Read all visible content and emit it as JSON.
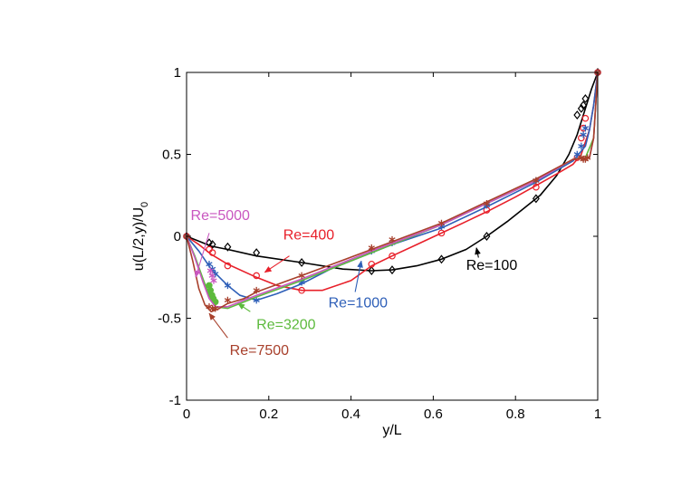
{
  "chart_data": {
    "type": "line",
    "title": "",
    "xlabel": "y/L",
    "ylabel_main": "u(L/2,y)/U",
    "ylabel_sub": "0",
    "xlim": [
      0,
      1
    ],
    "ylim": [
      -1,
      1
    ],
    "xticks": [
      0,
      0.2,
      0.4,
      0.6,
      0.8,
      1
    ],
    "xtick_labels": [
      "0",
      "0.2",
      "0.4",
      "0.6",
      "0.8",
      "1"
    ],
    "yticks": [
      -1,
      -0.5,
      0,
      0.5,
      1
    ],
    "ytick_labels": [
      "-1",
      "-0.5",
      "0",
      "0.5",
      "1"
    ],
    "grid": false,
    "series": [
      {
        "name": "Re=100",
        "color": "#000000",
        "marker": "diamond",
        "curve": [
          [
            0,
            0
          ],
          [
            0.03,
            -0.03
          ],
          [
            0.06,
            -0.06
          ],
          [
            0.1,
            -0.08
          ],
          [
            0.17,
            -0.12
          ],
          [
            0.28,
            -0.16
          ],
          [
            0.38,
            -0.2
          ],
          [
            0.45,
            -0.21
          ],
          [
            0.5,
            -0.205
          ],
          [
            0.56,
            -0.18
          ],
          [
            0.62,
            -0.14
          ],
          [
            0.68,
            -0.08
          ],
          [
            0.73,
            0.0
          ],
          [
            0.78,
            0.09
          ],
          [
            0.82,
            0.17
          ],
          [
            0.86,
            0.25
          ],
          [
            0.9,
            0.37
          ],
          [
            0.93,
            0.5
          ],
          [
            0.95,
            0.62
          ],
          [
            0.97,
            0.78
          ],
          [
            0.985,
            0.9
          ],
          [
            1,
            1
          ]
        ],
        "points": [
          [
            0,
            0
          ],
          [
            0.055,
            -0.04
          ],
          [
            0.063,
            -0.05
          ],
          [
            0.1,
            -0.065
          ],
          [
            0.17,
            -0.1
          ],
          [
            0.28,
            -0.16
          ],
          [
            0.45,
            -0.21
          ],
          [
            0.5,
            -0.205
          ],
          [
            0.62,
            -0.14
          ],
          [
            0.73,
            0.0
          ],
          [
            0.85,
            0.23
          ],
          [
            0.95,
            0.74
          ],
          [
            0.96,
            0.78
          ],
          [
            0.965,
            0.8
          ],
          [
            0.97,
            0.84
          ],
          [
            1,
            1
          ]
        ]
      },
      {
        "name": "Re=400",
        "color": "#e8202a",
        "marker": "circle",
        "curve": [
          [
            0,
            0
          ],
          [
            0.03,
            -0.05
          ],
          [
            0.06,
            -0.11
          ],
          [
            0.1,
            -0.17
          ],
          [
            0.17,
            -0.25
          ],
          [
            0.22,
            -0.3
          ],
          [
            0.28,
            -0.33
          ],
          [
            0.33,
            -0.33
          ],
          [
            0.4,
            -0.27
          ],
          [
            0.45,
            -0.18
          ],
          [
            0.5,
            -0.12
          ],
          [
            0.56,
            -0.05
          ],
          [
            0.62,
            0.02
          ],
          [
            0.68,
            0.09
          ],
          [
            0.73,
            0.15
          ],
          [
            0.8,
            0.24
          ],
          [
            0.85,
            0.31
          ],
          [
            0.9,
            0.38
          ],
          [
            0.94,
            0.44
          ],
          [
            0.96,
            0.5
          ],
          [
            0.98,
            0.65
          ],
          [
            0.99,
            0.8
          ],
          [
            1,
            1
          ]
        ],
        "points": [
          [
            0,
            0
          ],
          [
            0.055,
            -0.08
          ],
          [
            0.063,
            -0.1
          ],
          [
            0.1,
            -0.18
          ],
          [
            0.17,
            -0.24
          ],
          [
            0.28,
            -0.33
          ],
          [
            0.45,
            -0.17
          ],
          [
            0.5,
            -0.12
          ],
          [
            0.62,
            0.02
          ],
          [
            0.73,
            0.16
          ],
          [
            0.85,
            0.3
          ],
          [
            0.95,
            0.48
          ],
          [
            0.96,
            0.6
          ],
          [
            0.965,
            0.66
          ],
          [
            0.97,
            0.72
          ],
          [
            1,
            1
          ]
        ]
      },
      {
        "name": "Re=1000",
        "color": "#2e5fb8",
        "marker": "star",
        "curve": [
          [
            0,
            0
          ],
          [
            0.03,
            -0.09
          ],
          [
            0.06,
            -0.2
          ],
          [
            0.1,
            -0.3
          ],
          [
            0.13,
            -0.36
          ],
          [
            0.17,
            -0.39
          ],
          [
            0.22,
            -0.35
          ],
          [
            0.28,
            -0.29
          ],
          [
            0.35,
            -0.2
          ],
          [
            0.45,
            -0.1
          ],
          [
            0.5,
            -0.05
          ],
          [
            0.62,
            0.05
          ],
          [
            0.73,
            0.18
          ],
          [
            0.85,
            0.33
          ],
          [
            0.94,
            0.46
          ],
          [
            0.97,
            0.55
          ],
          [
            0.98,
            0.65
          ],
          [
            0.99,
            0.8
          ],
          [
            1,
            1
          ]
        ],
        "points": [
          [
            0,
            0
          ],
          [
            0.055,
            -0.17
          ],
          [
            0.063,
            -0.2
          ],
          [
            0.07,
            -0.23
          ],
          [
            0.1,
            -0.3
          ],
          [
            0.17,
            -0.39
          ],
          [
            0.28,
            -0.28
          ],
          [
            0.45,
            -0.09
          ],
          [
            0.5,
            -0.04
          ],
          [
            0.62,
            0.06
          ],
          [
            0.73,
            0.19
          ],
          [
            0.85,
            0.34
          ],
          [
            0.95,
            0.5
          ],
          [
            0.96,
            0.55
          ],
          [
            0.965,
            0.62
          ],
          [
            0.97,
            0.66
          ],
          [
            1,
            1
          ]
        ]
      },
      {
        "name": "Re=3200",
        "color": "#5cba3c",
        "marker": "circle-filled",
        "curve": [
          [
            0,
            0
          ],
          [
            0.02,
            -0.12
          ],
          [
            0.04,
            -0.26
          ],
          [
            0.055,
            -0.36
          ],
          [
            0.07,
            -0.43
          ],
          [
            0.1,
            -0.44
          ],
          [
            0.13,
            -0.41
          ],
          [
            0.17,
            -0.37
          ],
          [
            0.28,
            -0.27
          ],
          [
            0.45,
            -0.1
          ],
          [
            0.62,
            0.07
          ],
          [
            0.73,
            0.2
          ],
          [
            0.85,
            0.34
          ],
          [
            0.94,
            0.47
          ],
          [
            0.97,
            0.48
          ],
          [
            0.99,
            0.6
          ],
          [
            1,
            1
          ]
        ],
        "points": [
          [
            0.055,
            -0.3
          ],
          [
            0.058,
            -0.33
          ],
          [
            0.062,
            -0.36
          ],
          [
            0.065,
            -0.38
          ],
          [
            0.07,
            -0.4
          ]
        ]
      },
      {
        "name": "Re=5000",
        "color": "#c957c0",
        "marker": "star",
        "curve": [
          [
            0,
            0
          ],
          [
            0.02,
            -0.13
          ],
          [
            0.04,
            -0.28
          ],
          [
            0.055,
            -0.38
          ],
          [
            0.07,
            -0.43
          ],
          [
            0.1,
            -0.43
          ],
          [
            0.13,
            -0.4
          ],
          [
            0.17,
            -0.36
          ],
          [
            0.28,
            -0.26
          ],
          [
            0.45,
            -0.09
          ],
          [
            0.62,
            0.07
          ],
          [
            0.73,
            0.2
          ],
          [
            0.85,
            0.34
          ],
          [
            0.94,
            0.47
          ],
          [
            0.98,
            0.48
          ],
          [
            0.99,
            0.6
          ],
          [
            1,
            1
          ]
        ],
        "points": [
          [
            0.058,
            -0.21
          ],
          [
            0.062,
            -0.24
          ],
          [
            0.066,
            -0.27
          ]
        ]
      },
      {
        "name": "Re=7500",
        "color": "#a8402c",
        "marker": "star",
        "curve": [
          [
            0,
            0
          ],
          [
            0.015,
            -0.15
          ],
          [
            0.03,
            -0.32
          ],
          [
            0.045,
            -0.42
          ],
          [
            0.06,
            -0.46
          ],
          [
            0.08,
            -0.44
          ],
          [
            0.1,
            -0.41
          ],
          [
            0.14,
            -0.38
          ],
          [
            0.17,
            -0.34
          ],
          [
            0.28,
            -0.24
          ],
          [
            0.45,
            -0.08
          ],
          [
            0.62,
            0.08
          ],
          [
            0.73,
            0.21
          ],
          [
            0.85,
            0.35
          ],
          [
            0.94,
            0.47
          ],
          [
            0.98,
            0.48
          ],
          [
            0.99,
            0.6
          ],
          [
            1,
            1
          ]
        ],
        "points": [
          [
            0,
            0
          ],
          [
            0.055,
            -0.43
          ],
          [
            0.063,
            -0.44
          ],
          [
            0.07,
            -0.44
          ],
          [
            0.1,
            -0.39
          ],
          [
            0.17,
            -0.33
          ],
          [
            0.28,
            -0.24
          ],
          [
            0.45,
            -0.07
          ],
          [
            0.5,
            -0.02
          ],
          [
            0.62,
            0.08
          ],
          [
            0.73,
            0.2
          ],
          [
            0.85,
            0.34
          ],
          [
            0.96,
            0.48
          ],
          [
            0.965,
            0.47
          ],
          [
            0.97,
            0.47
          ],
          [
            0.975,
            0.48
          ],
          [
            1,
            1
          ]
        ]
      }
    ],
    "annotations": [
      {
        "text": "Re=100",
        "color": "#000000",
        "text_at": [
          0.68,
          -0.205
        ],
        "arrow_from": [
          0.71,
          -0.13
        ],
        "arrow_to": [
          0.705,
          -0.07
        ]
      },
      {
        "text": "Re=400",
        "color": "#e8202a",
        "text_at": [
          0.235,
          -0.02
        ],
        "arrow_from": [
          0.25,
          -0.12
        ],
        "arrow_to": [
          0.19,
          -0.22
        ]
      },
      {
        "text": "Re=1000",
        "color": "#2e5fb8",
        "text_at": [
          0.345,
          -0.435
        ],
        "arrow_from": [
          0.41,
          -0.34
        ],
        "arrow_to": [
          0.425,
          -0.15
        ]
      },
      {
        "text": "Re=3200",
        "color": "#5cba3c",
        "text_at": [
          0.17,
          -0.565
        ],
        "arrow_from": [
          0.155,
          -0.46
        ],
        "arrow_to": [
          0.125,
          -0.41
        ]
      },
      {
        "text": "Re=5000",
        "color": "#c957c0",
        "text_at": [
          0.01,
          0.1
        ],
        "arrow_from": [
          0.055,
          0.02
        ],
        "arrow_to": [
          0.022,
          -0.25
        ]
      },
      {
        "text": "Re=7500",
        "color": "#a8402c",
        "text_at": [
          0.105,
          -0.725
        ],
        "arrow_from": [
          0.1,
          -0.62
        ],
        "arrow_to": [
          0.055,
          -0.47
        ]
      }
    ]
  }
}
